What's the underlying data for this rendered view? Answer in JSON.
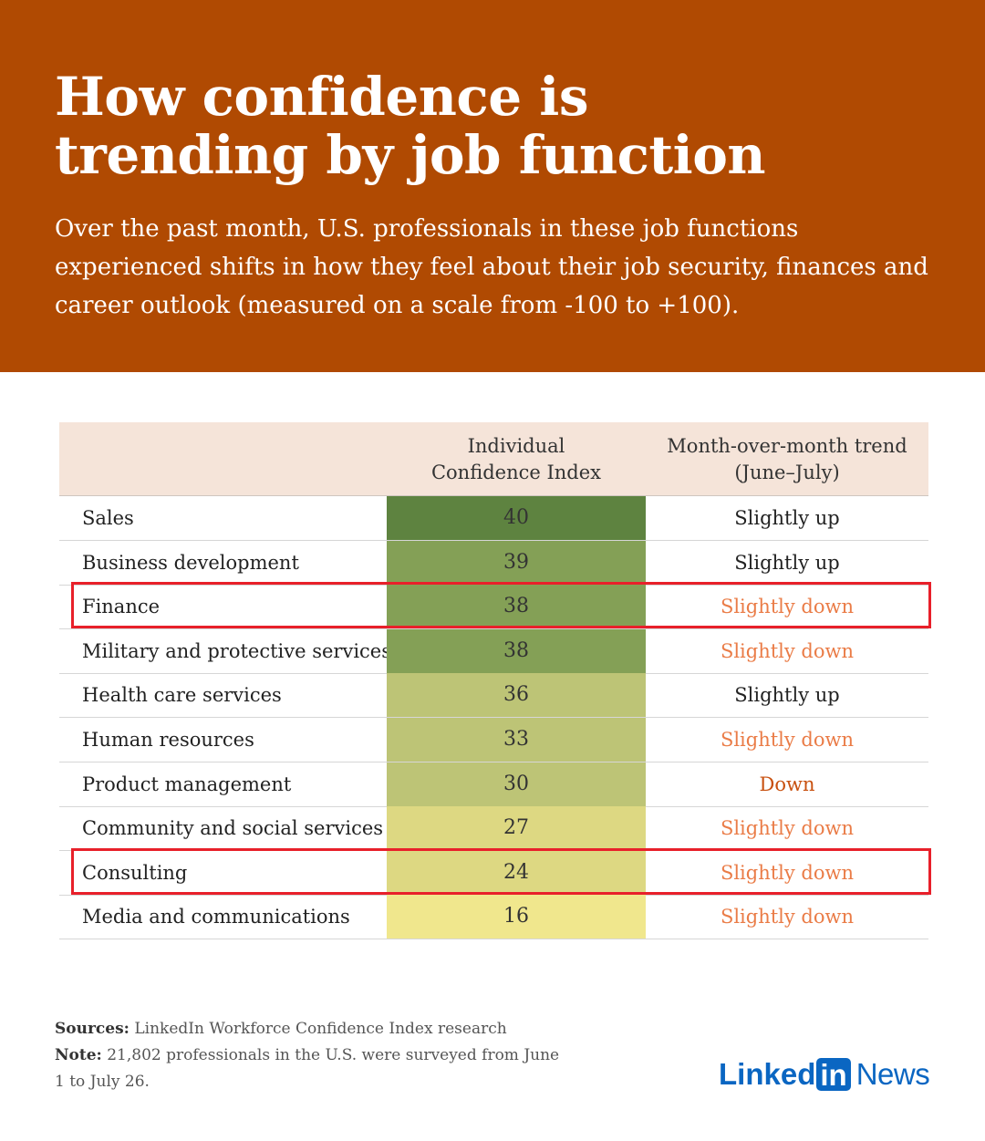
{
  "header": {
    "title": "How confidence is\ntrending by job function",
    "subtitle": "Over the past month, U.S. professionals in these job functions experienced shifts in how they feel about their job security, finances and career outlook (measured on a scale from -100 to +100)."
  },
  "chart_data": {
    "type": "table",
    "title": "How confidence is trending by job function",
    "columns": [
      "",
      "Individual\nConfidence Index",
      "Month-over-month trend\n(June–July)"
    ],
    "rows": [
      {
        "function": "Sales",
        "index": "40",
        "trend": "Slightly up",
        "trend_dir": "up",
        "cell_color": "#5e8340",
        "highlighted": false
      },
      {
        "function": "Business development",
        "index": "39",
        "trend": "Slightly up",
        "trend_dir": "up",
        "cell_color": "#84a056",
        "highlighted": false
      },
      {
        "function": "Finance",
        "index": "38",
        "trend": "Slightly down",
        "trend_dir": "slight-down",
        "cell_color": "#84a056",
        "highlighted": true
      },
      {
        "function": "Military and protective services",
        "index": "38",
        "trend": "Slightly down",
        "trend_dir": "slight-down",
        "cell_color": "#84a056",
        "highlighted": false
      },
      {
        "function": "Health care services",
        "index": "36",
        "trend": "Slightly up",
        "trend_dir": "up",
        "cell_color": "#bdc476",
        "highlighted": false
      },
      {
        "function": "Human resources",
        "index": "33",
        "trend": "Slightly down",
        "trend_dir": "slight-down",
        "cell_color": "#bdc476",
        "highlighted": false
      },
      {
        "function": "Product management",
        "index": "30",
        "trend": "Down",
        "trend_dir": "down",
        "cell_color": "#bdc476",
        "highlighted": false
      },
      {
        "function": "Community and social services",
        "index": "27",
        "trend": "Slightly down",
        "trend_dir": "slight-down",
        "cell_color": "#ddd882",
        "highlighted": false
      },
      {
        "function": "Consulting",
        "index": "24",
        "trend": "Slightly down",
        "trend_dir": "slight-down",
        "cell_color": "#ddd882",
        "highlighted": true
      },
      {
        "function": "Media and communications",
        "index": "16",
        "trend": "Slightly down",
        "trend_dir": "slight-down",
        "cell_color": "#f0e78d",
        "highlighted": false
      }
    ]
  },
  "colors": {
    "header_bg": "#b04a02",
    "trend_up": "#222222",
    "trend_slight_down": "#ea7c47",
    "trend_down": "#c8500f",
    "highlight_border": "#e8202a"
  },
  "footer": {
    "sources_label": "Sources:",
    "sources_text": " LinkedIn Workforce Confidence Index research",
    "note_label": "Note:",
    "note_text": " 21,802 professionals in the U.S. were surveyed from June 1 to July 26.",
    "logo_linked": "Linked",
    "logo_in": "in",
    "logo_news": "News"
  }
}
